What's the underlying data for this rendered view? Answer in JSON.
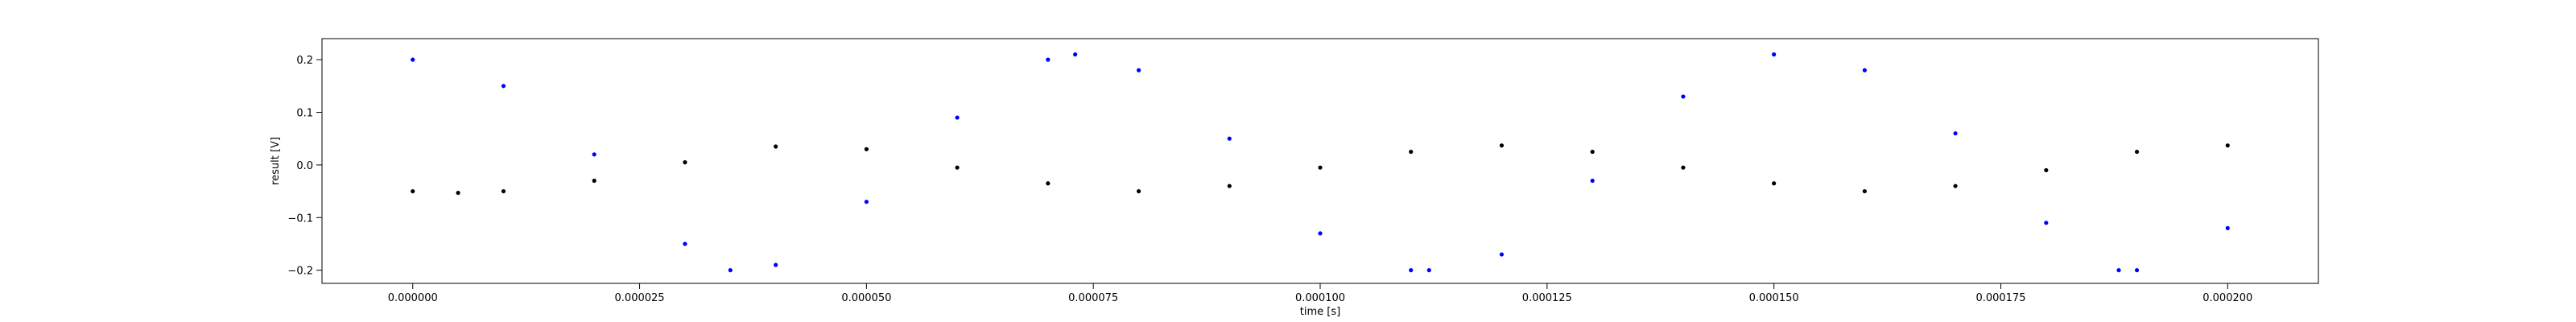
{
  "chart_data": {
    "type": "scatter",
    "title": "",
    "xlabel": "time [s]",
    "ylabel": "result [V]",
    "xlim": [
      -1e-05,
      0.00021
    ],
    "ylim": [
      -0.225,
      0.24
    ],
    "grid": false,
    "xticks": [
      0,
      2.5e-05,
      5e-05,
      7.5e-05,
      0.0001,
      0.000125,
      0.00015,
      0.000175,
      0.0002
    ],
    "xtick_labels": [
      "0.000000",
      "0.000025",
      "0.000050",
      "0.000075",
      "0.000100",
      "0.000125",
      "0.000150",
      "0.000175",
      "0.000200"
    ],
    "yticks": [
      -0.2,
      -0.1,
      0.0,
      0.1,
      0.2
    ],
    "ytick_labels": [
      "−0.2",
      "−0.1",
      "0.0",
      "0.1",
      "0.2"
    ],
    "series": [
      {
        "color": "#0000ff",
        "x": [
          0,
          1e-05,
          2e-05,
          3e-05,
          3.5e-05,
          4e-05,
          5e-05,
          6e-05,
          7e-05,
          7.3e-05,
          8e-05,
          9e-05,
          0.0001,
          0.00011,
          0.000112,
          0.00012,
          0.00013,
          0.00014,
          0.00015,
          0.00016,
          0.00017,
          0.00018,
          0.000188,
          0.00019,
          0.0002
        ],
        "y": [
          0.2,
          0.15,
          0.02,
          -0.15,
          -0.2,
          -0.19,
          -0.07,
          0.09,
          0.2,
          0.21,
          0.18,
          0.05,
          -0.13,
          -0.2,
          -0.2,
          -0.17,
          -0.03,
          0.13,
          0.21,
          0.18,
          0.06,
          -0.11,
          -0.2,
          -0.2,
          -0.12
        ]
      },
      {
        "color": "#000000",
        "x": [
          0,
          5e-06,
          1e-05,
          2e-05,
          3e-05,
          4e-05,
          5e-05,
          6e-05,
          7e-05,
          8e-05,
          9e-05,
          0.0001,
          0.00011,
          0.00012,
          0.00013,
          0.00014,
          0.00015,
          0.00016,
          0.00017,
          0.00018,
          0.00019,
          0.0002
        ],
        "y": [
          -0.05,
          -0.053,
          -0.05,
          -0.03,
          0.005,
          0.035,
          0.03,
          -0.005,
          -0.035,
          -0.05,
          -0.04,
          -0.005,
          0.025,
          0.037,
          0.025,
          -0.005,
          -0.035,
          -0.05,
          -0.04,
          -0.01,
          0.025,
          0.037
        ]
      }
    ]
  }
}
